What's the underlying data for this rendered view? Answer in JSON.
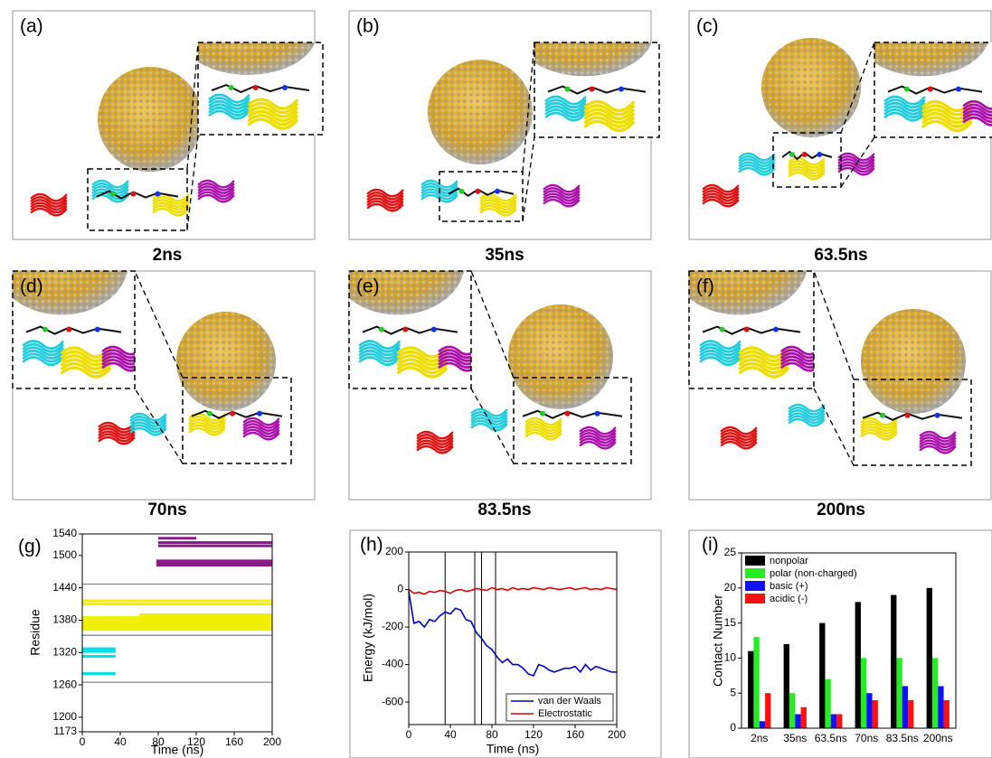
{
  "panels": [
    {
      "label": "(a)",
      "caption": "2ns"
    },
    {
      "label": "(b)",
      "caption": "35ns"
    },
    {
      "label": "(c)",
      "caption": "63.5ns"
    },
    {
      "label": "(d)",
      "caption": "70ns"
    },
    {
      "label": "(e)",
      "caption": "83.5ns"
    },
    {
      "label": "(f)",
      "caption": "200ns"
    }
  ],
  "chart_data": [
    {
      "type": "strip",
      "label": "(g)",
      "x_label": "Time (ns)",
      "y_label": "Residue",
      "xlim": [
        0,
        200
      ],
      "xticks": [
        0,
        40,
        80,
        120,
        160,
        200
      ],
      "ylim": [
        1173,
        1540
      ],
      "yticks": [
        1173,
        1200,
        1260,
        1320,
        1380,
        1440,
        1500,
        1540
      ],
      "hlines": [
        1265,
        1352,
        1447
      ],
      "hline_color": "#888888",
      "series": [
        {
          "color": "#00e0e8",
          "values": [
            1281,
            1313,
            1322,
            1327
          ],
          "x": [
            [
              0,
              35
            ],
            [
              0,
              35
            ],
            [
              0,
              35
            ],
            [
              0,
              35
            ]
          ]
        },
        {
          "color": "#f0f000",
          "values": [
            1363,
            1368,
            1372,
            1376,
            1380,
            1385,
            1390,
            1410,
            1416
          ],
          "x": [
            [
              0,
              200
            ],
            [
              0,
              200
            ],
            [
              0,
              200
            ],
            [
              0,
              200
            ],
            [
              0,
              200
            ],
            [
              0,
              200
            ],
            [
              60,
              200
            ],
            [
              0,
              200
            ],
            [
              0,
              200
            ]
          ]
        },
        {
          "color": "#8b1a8b",
          "values": [
            1482,
            1486,
            1490,
            1518,
            1524,
            1532
          ],
          "x": [
            [
              78,
              200
            ],
            [
              78,
              200
            ],
            [
              78,
              200
            ],
            [
              80,
              200
            ],
            [
              80,
              200
            ],
            [
              80,
              120
            ]
          ]
        }
      ]
    },
    {
      "type": "line",
      "label": "(h)",
      "x_label": "Time (ns)",
      "y_label": "Energy (kJ/mol)",
      "xlim": [
        0,
        200
      ],
      "xticks": [
        0,
        40,
        80,
        120,
        160,
        200
      ],
      "ylim": [
        -720,
        200
      ],
      "yticks": [
        -600,
        -400,
        -200,
        0,
        200
      ],
      "vlines": [
        35,
        63.5,
        70,
        83.5
      ],
      "legend": "lower-right",
      "x": [
        0,
        5,
        10,
        15,
        20,
        25,
        30,
        35,
        40,
        45,
        50,
        55,
        60,
        65,
        70,
        75,
        80,
        85,
        90,
        95,
        100,
        105,
        110,
        115,
        120,
        125,
        130,
        135,
        140,
        145,
        150,
        155,
        160,
        165,
        170,
        175,
        180,
        185,
        190,
        195,
        200
      ],
      "series": [
        {
          "name": "van der Waals",
          "color": "#0000cc",
          "values": [
            -10,
            -180,
            -170,
            -200,
            -160,
            -170,
            -140,
            -120,
            -130,
            -100,
            -110,
            -160,
            -170,
            -230,
            -260,
            -300,
            -320,
            -360,
            -390,
            -370,
            -400,
            -400,
            -420,
            -450,
            -460,
            -400,
            -410,
            -430,
            -440,
            -430,
            -420,
            -420,
            -410,
            -440,
            -400,
            -430,
            -410,
            -420,
            -430,
            -440,
            -440
          ]
        },
        {
          "name": "Electrostatic",
          "color": "#dd0000",
          "values": [
            0,
            -20,
            -15,
            -25,
            -10,
            -15,
            -5,
            -10,
            -20,
            -5,
            0,
            -10,
            -5,
            5,
            0,
            -5,
            10,
            0,
            5,
            -5,
            10,
            0,
            5,
            0,
            10,
            5,
            0,
            10,
            5,
            0,
            5,
            10,
            0,
            5,
            10,
            0,
            5,
            0,
            10,
            5,
            0
          ]
        }
      ]
    },
    {
      "type": "bar",
      "label": "(i)",
      "y_label": "Contact Number",
      "categories": [
        "2ns",
        "35ns",
        "63.5ns",
        "70ns",
        "83.5ns",
        "200ns"
      ],
      "ylim": [
        0,
        25
      ],
      "yticks": [
        0,
        5,
        10,
        15,
        20,
        25
      ],
      "legend": "upper-left",
      "series": [
        {
          "name": "nonpolar",
          "color": "#000000",
          "values": [
            11,
            12,
            15,
            18,
            19,
            20
          ]
        },
        {
          "name": "polar (non-charged)",
          "color": "#22ee22",
          "values": [
            13,
            5,
            7,
            10,
            10,
            10
          ]
        },
        {
          "name": "basic (+)",
          "color": "#1010ff",
          "values": [
            1,
            2,
            2,
            5,
            6,
            6
          ]
        },
        {
          "name": "acidic (-)",
          "color": "#ff1010",
          "values": [
            5,
            3,
            2,
            4,
            4,
            4
          ]
        }
      ]
    }
  ]
}
